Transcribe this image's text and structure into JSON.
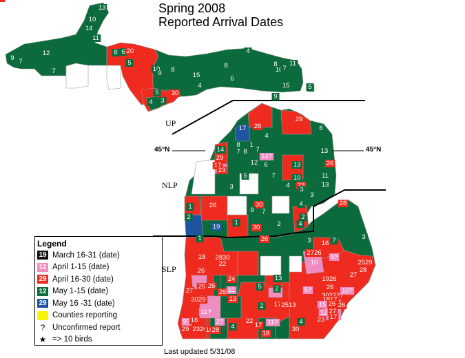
{
  "title": {
    "line1": "Spring 2008",
    "line2": "Reported Arrival Dates"
  },
  "regions": {
    "up": "UP",
    "nlp": "NLP",
    "slp": "SLP"
  },
  "latitude": {
    "label": "45",
    "unit": "°N"
  },
  "colors": {
    "march": "#111111",
    "early_april": "#f08cc0",
    "late_april": "#ee2b1e",
    "early_may": "#0c6b3c",
    "late_may": "#1f55a0",
    "no_report": "#ffffff",
    "counties_reporting": "#f8f400",
    "county_border": "#9a9a9a",
    "line": "#000000"
  },
  "legend": {
    "title": "Legend",
    "items": [
      {
        "swatch": "19",
        "label": "March 16-31 (date)",
        "color": "march"
      },
      {
        "swatch": "12",
        "label": "April 1-15 (date)",
        "color": "early_april"
      },
      {
        "swatch": "29",
        "label": "April 16-30 (date)",
        "color": "late_april"
      },
      {
        "swatch": "12",
        "label": "May 1-15 (date)",
        "color": "early_may"
      },
      {
        "swatch": "29",
        "label": "May 16 -31 (date)",
        "color": "late_may"
      },
      {
        "swatch": "",
        "label": "Counties reporting",
        "color": "counties_reporting"
      }
    ],
    "unconfirmed_symbol": "?",
    "unconfirmed_label": "Unconfirmed report",
    "star_symbol": "★",
    "star_label": "=> 10 birds"
  },
  "updated": "Last updated 5/31/08",
  "labels": [
    [
      "13",
      "early_may"
    ],
    [
      "10",
      "early_may"
    ],
    [
      "14",
      "early_may"
    ],
    [
      "11",
      "early_may"
    ],
    [
      "12",
      "early_may"
    ],
    [
      "9",
      "early_may"
    ],
    [
      "7",
      "early_may"
    ],
    [
      "7",
      "early_may"
    ],
    [
      "8",
      "early_may"
    ],
    [
      "6",
      "early_may"
    ],
    [
      "20",
      "late_april"
    ],
    [
      "5",
      "early_may"
    ],
    [
      "10",
      "early_may"
    ],
    [
      "9",
      "early_may"
    ],
    [
      "8",
      "early_may"
    ],
    [
      "15",
      "early_may"
    ],
    [
      "8",
      "early_may"
    ],
    [
      "4",
      "early_may"
    ],
    [
      "8",
      "early_may"
    ],
    [
      "10",
      "early_may"
    ],
    [
      "7",
      "early_may"
    ],
    [
      "11",
      "early_may"
    ],
    [
      "6",
      "early_may"
    ],
    [
      "4",
      "early_may"
    ],
    [
      "15",
      "early_may"
    ],
    [
      "5",
      "early_may"
    ],
    [
      "5",
      "early_may"
    ],
    [
      "30",
      "late_april"
    ],
    [
      "4",
      "early_may"
    ],
    [
      "3",
      "early_may"
    ],
    [
      "9",
      "early_may"
    ],
    [
      "17",
      "late_may"
    ],
    [
      "26",
      "late_april"
    ],
    [
      "29",
      "late_april"
    ],
    [
      "6",
      "early_may"
    ],
    [
      "4",
      "early_may"
    ],
    [
      "8",
      "early_may"
    ],
    [
      "1",
      "early_may"
    ],
    [
      "7",
      "early_may"
    ],
    [
      "8",
      "early_may"
    ],
    [
      "7",
      "early_may"
    ],
    [
      "14",
      "early_may"
    ],
    [
      "29",
      "late_april"
    ],
    [
      "17",
      "late_april"
    ],
    [
      "23",
      "late_april"
    ],
    [
      "14?",
      "early_april"
    ],
    [
      "12",
      "early_may"
    ],
    [
      "6",
      "early_may"
    ],
    [
      "13",
      "early_may"
    ],
    [
      "13",
      "early_may"
    ],
    [
      "26",
      "late_april"
    ],
    [
      "5",
      "early_may"
    ],
    [
      "7",
      "early_may"
    ],
    [
      "10",
      "early_may"
    ],
    [
      "4",
      "early_may"
    ],
    [
      "23",
      "late_april"
    ],
    [
      "11",
      "early_may"
    ],
    [
      "13",
      "early_may"
    ],
    [
      "3",
      "early_may"
    ],
    [
      "3",
      "early_may"
    ],
    [
      "3",
      "early_may"
    ],
    [
      "1",
      "early_may"
    ],
    [
      "26",
      "late_april"
    ],
    [
      "30",
      "late_april"
    ],
    [
      "9",
      "early_may"
    ],
    [
      "7",
      "early_may"
    ],
    [
      "4",
      "early_may"
    ],
    [
      "2",
      "early_may"
    ],
    [
      "19",
      "late_may"
    ],
    [
      "1",
      "early_may"
    ],
    [
      "30",
      "late_april"
    ],
    [
      "2",
      "early_may"
    ],
    [
      "2",
      "early_may"
    ],
    [
      "4",
      "early_may"
    ],
    [
      "28",
      "late_april"
    ],
    [
      "3",
      "early_may"
    ],
    [
      "1",
      "early_may"
    ],
    [
      "26",
      "late_april"
    ],
    [
      "3",
      "early_may"
    ],
    [
      "7",
      "early_may"
    ],
    [
      "16",
      "late_april"
    ],
    [
      "18",
      "late_april"
    ],
    [
      "2830",
      "late_april"
    ],
    [
      "22",
      "late_april"
    ],
    [
      "2726",
      "late_april"
    ],
    [
      "10",
      "early_april"
    ],
    [
      "9?",
      "early_april"
    ],
    [
      "2529",
      "late_april"
    ],
    [
      "28",
      "late_april"
    ],
    [
      "27",
      "late_april"
    ],
    [
      "26",
      "late_april"
    ],
    [
      "25",
      "late_april"
    ],
    [
      "26",
      "late_april"
    ],
    [
      "24",
      "late_april"
    ],
    [
      "5",
      "early_may"
    ],
    [
      "13",
      "early_may"
    ],
    [
      "1926",
      "late_april"
    ],
    [
      "26",
      "late_april"
    ],
    [
      "27",
      "late_april"
    ],
    [
      "26",
      "late_april"
    ],
    [
      "11",
      "early_april"
    ],
    [
      "2",
      "early_may"
    ],
    [
      "5?",
      "early_april"
    ],
    [
      "302727",
      "late_april"
    ],
    [
      "10?",
      "early_april"
    ],
    [
      "3029",
      "late_april"
    ],
    [
      "19",
      "late_april"
    ],
    [
      "2",
      "early_may"
    ],
    [
      "17",
      "late_april"
    ],
    [
      "2513",
      "late_april"
    ],
    [
      "1817",
      "late_april"
    ],
    [
      "11?",
      "early_april"
    ],
    [
      "15",
      "early_april"
    ],
    [
      "26",
      "late_april"
    ],
    [
      "12",
      "early_april"
    ],
    [
      "26",
      "late_april"
    ],
    [
      "27",
      "late_april"
    ],
    [
      "9?",
      "early_april"
    ],
    [
      "16",
      "late_april"
    ],
    [
      "2?",
      "early_april"
    ],
    [
      "4",
      "early_may"
    ],
    [
      "22",
      "late_april"
    ],
    [
      "17",
      "late_april"
    ],
    [
      "11?",
      "early_april"
    ],
    [
      "4",
      "early_may"
    ],
    [
      "23",
      "late_april"
    ],
    [
      "17",
      "late_april"
    ],
    [
      "29",
      "late_april"
    ],
    [
      "2320",
      "late_april"
    ],
    [
      "16",
      "late_april"
    ],
    [
      "28",
      "late_april"
    ],
    [
      "18",
      "late_april"
    ],
    [
      "30",
      "late_april"
    ],
    [
      "19",
      "late_april"
    ]
  ]
}
